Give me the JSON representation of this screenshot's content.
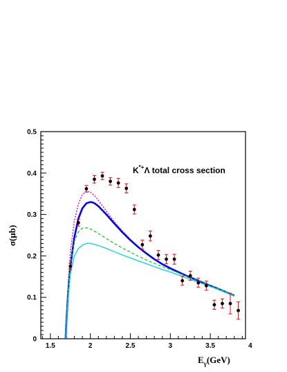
{
  "chart_data": {
    "type": "line",
    "title": "",
    "annotation": {
      "prefix": "K",
      "superscript": "*+",
      "suffix": "Λ total cross section"
    },
    "xlabel": {
      "main": "E",
      "sub": "γ",
      "tail": "(GeV)"
    },
    "ylabel": "σ(μb)",
    "xlim": [
      1.38,
      3.94
    ],
    "ylim": [
      0,
      0.5
    ],
    "xticks": [
      1.5,
      2,
      2.5,
      3,
      3.5,
      4
    ],
    "xtick_labels": [
      "1.5",
      "2",
      "2.5",
      "3",
      "3.5",
      "4"
    ],
    "yticks": [
      0,
      0.1,
      0.2,
      0.3,
      0.4,
      0.5
    ],
    "ytick_labels": [
      "0",
      "0.1",
      "0.2",
      "0.3",
      "0.4",
      "0.5"
    ],
    "grid": false,
    "legend": "none",
    "data_points": {
      "x": [
        1.75,
        1.85,
        1.95,
        2.05,
        2.15,
        2.25,
        2.35,
        2.45,
        2.55,
        2.65,
        2.75,
        2.85,
        2.95,
        3.05,
        3.15,
        3.25,
        3.35,
        3.45,
        3.55,
        3.65,
        3.75,
        3.85
      ],
      "y": [
        0.175,
        0.28,
        0.362,
        0.385,
        0.393,
        0.38,
        0.376,
        0.363,
        0.312,
        0.227,
        0.248,
        0.202,
        0.192,
        0.192,
        0.14,
        0.152,
        0.135,
        0.128,
        0.082,
        0.085,
        0.085,
        0.068
      ],
      "err": [
        0.008,
        0.008,
        0.008,
        0.009,
        0.009,
        0.009,
        0.011,
        0.011,
        0.011,
        0.011,
        0.012,
        0.011,
        0.011,
        0.012,
        0.011,
        0.011,
        0.011,
        0.011,
        0.011,
        0.011,
        0.025,
        0.021
      ],
      "marker_color": "#000000",
      "errorbar_color": "#ff0000"
    },
    "series": [
      {
        "style": "dotted",
        "color": "#e000e0",
        "x": [
          1.69,
          1.7,
          1.72,
          1.75,
          1.8,
          1.85,
          1.9,
          1.95,
          2.0,
          2.05,
          2.1,
          2.2,
          2.3,
          2.4,
          2.5,
          2.6,
          2.7,
          2.8,
          2.9,
          3.0,
          3.2,
          3.4,
          3.6,
          3.8
        ],
        "y": [
          0.0,
          0.045,
          0.125,
          0.21,
          0.285,
          0.325,
          0.348,
          0.356,
          0.354,
          0.346,
          0.334,
          0.308,
          0.282,
          0.26,
          0.24,
          0.222,
          0.207,
          0.193,
          0.181,
          0.17,
          0.152,
          0.136,
          0.122,
          0.105
        ]
      },
      {
        "style": "solid-thick",
        "color": "#0000ff",
        "x": [
          1.69,
          1.7,
          1.72,
          1.75,
          1.8,
          1.85,
          1.9,
          1.95,
          2.0,
          2.03,
          2.06,
          2.1,
          2.2,
          2.3,
          2.4,
          2.5,
          2.6,
          2.7,
          2.8,
          2.9,
          3.0,
          3.2,
          3.4,
          3.6,
          3.8
        ],
        "y": [
          0.0,
          0.04,
          0.105,
          0.175,
          0.245,
          0.29,
          0.315,
          0.327,
          0.33,
          0.329,
          0.326,
          0.32,
          0.3,
          0.278,
          0.257,
          0.238,
          0.221,
          0.206,
          0.192,
          0.18,
          0.17,
          0.152,
          0.136,
          0.12,
          0.104
        ]
      },
      {
        "style": "dashed",
        "color": "#00cc00",
        "x": [
          1.69,
          1.7,
          1.72,
          1.75,
          1.8,
          1.85,
          1.9,
          1.95,
          2.0,
          2.05,
          2.1,
          2.2,
          2.3,
          2.4,
          2.5,
          2.6,
          2.7,
          2.8,
          2.9,
          3.0,
          3.2,
          3.4,
          3.6,
          3.8
        ],
        "y": [
          0.0,
          0.04,
          0.11,
          0.18,
          0.235,
          0.258,
          0.267,
          0.268,
          0.265,
          0.26,
          0.254,
          0.242,
          0.23,
          0.219,
          0.209,
          0.199,
          0.19,
          0.182,
          0.174,
          0.167,
          0.151,
          0.136,
          0.121,
          0.105
        ]
      },
      {
        "style": "solid",
        "color": "#00d4e6",
        "x": [
          1.69,
          1.7,
          1.72,
          1.75,
          1.8,
          1.85,
          1.9,
          1.95,
          2.0,
          2.05,
          2.1,
          2.2,
          2.3,
          2.4,
          2.5,
          2.6,
          2.7,
          2.8,
          2.9,
          3.0,
          3.2,
          3.4,
          3.6,
          3.8
        ],
        "y": [
          0.0,
          0.035,
          0.095,
          0.158,
          0.2,
          0.218,
          0.226,
          0.23,
          0.23,
          0.228,
          0.225,
          0.218,
          0.21,
          0.202,
          0.195,
          0.188,
          0.181,
          0.174,
          0.167,
          0.161,
          0.147,
          0.133,
          0.119,
          0.103
        ]
      }
    ]
  }
}
